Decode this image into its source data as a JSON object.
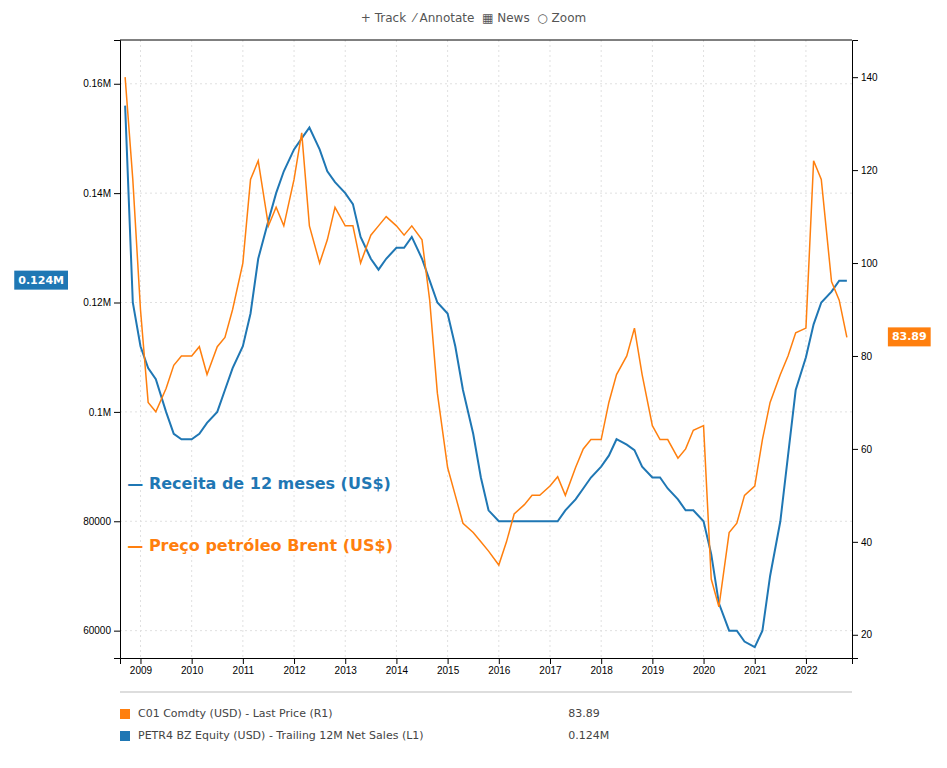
{
  "chart_data": {
    "type": "line",
    "subtitle": "+ Track  ⁄ Annotate  ▦ News  ○ Zoom",
    "x": [
      2008.7,
      2008.85,
      2009.0,
      2009.15,
      2009.3,
      2009.5,
      2009.65,
      2009.8,
      2010.0,
      2010.15,
      2010.3,
      2010.5,
      2010.65,
      2010.8,
      2011.0,
      2011.15,
      2011.3,
      2011.5,
      2011.65,
      2011.8,
      2012.0,
      2012.15,
      2012.3,
      2012.5,
      2012.65,
      2012.8,
      2013.0,
      2013.15,
      2013.3,
      2013.5,
      2013.65,
      2013.8,
      2014.0,
      2014.15,
      2014.3,
      2014.5,
      2014.65,
      2014.8,
      2015.0,
      2015.15,
      2015.3,
      2015.5,
      2015.65,
      2015.8,
      2016.0,
      2016.15,
      2016.3,
      2016.5,
      2016.65,
      2016.8,
      2017.0,
      2017.15,
      2017.3,
      2017.5,
      2017.65,
      2017.8,
      2018.0,
      2018.15,
      2018.3,
      2018.5,
      2018.65,
      2018.8,
      2019.0,
      2019.15,
      2019.3,
      2019.5,
      2019.65,
      2019.8,
      2020.0,
      2020.15,
      2020.3,
      2020.5,
      2020.65,
      2020.8,
      2021.0,
      2021.15,
      2021.3,
      2021.5,
      2021.65,
      2021.8,
      2022.0,
      2022.15,
      2022.3,
      2022.5,
      2022.65,
      2022.8
    ],
    "xlim": [
      2008.6,
      2022.9
    ],
    "xticks": [
      2009,
      2010,
      2011,
      2012,
      2013,
      2014,
      2015,
      2016,
      2017,
      2018,
      2019,
      2020,
      2021,
      2022
    ],
    "ylim": [
      55000,
      168000
    ],
    "yticks": [
      60000,
      80000,
      {
        "value": 100000,
        "label": "0.1M"
      },
      {
        "value": 120000,
        "label": "0.12M"
      },
      {
        "value": 140000,
        "label": "0.14M"
      },
      {
        "value": 160000,
        "label": "0.16M"
      }
    ],
    "y2lim": [
      15,
      148
    ],
    "y2ticks": [
      20,
      40,
      60,
      80,
      100,
      120,
      140
    ],
    "grid": true,
    "series": [
      {
        "name": "— Receita de 12 meses (US$)",
        "description": "PETR4 BZ Equity (USD) - Trailing 12M Net Sales (L1)",
        "last_label": "0.124M",
        "values": [
          156000,
          120000,
          112000,
          108000,
          106000,
          100000,
          96000,
          95000,
          95000,
          96000,
          98000,
          100000,
          104000,
          108000,
          112000,
          118000,
          128000,
          135000,
          140000,
          144000,
          148000,
          150000,
          152000,
          148000,
          144000,
          142000,
          140000,
          138000,
          132000,
          128000,
          126000,
          128000,
          130000,
          130000,
          132000,
          128000,
          124000,
          120000,
          118000,
          112000,
          104000,
          96000,
          88000,
          82000,
          80000,
          80000,
          80000,
          80000,
          80000,
          80000,
          80000,
          80000,
          82000,
          84000,
          86000,
          88000,
          90000,
          92000,
          95000,
          94000,
          93000,
          90000,
          88000,
          88000,
          86000,
          84000,
          82000,
          82000,
          80000,
          74000,
          65000,
          60000,
          60000,
          58000,
          57000,
          60000,
          70000,
          80000,
          92000,
          104000,
          110000,
          116000,
          120000,
          122000,
          124000,
          124000
        ]
      },
      {
        "name": "— Preço petróleo Brent (US$)",
        "axis": "y2",
        "description": "C01 Comdty (USD) - Last Price (R1)",
        "last_label": "83.89",
        "values": [
          140,
          118,
          90,
          70,
          68,
          73,
          78,
          80,
          80,
          82,
          76,
          82,
          84,
          90,
          100,
          118,
          122,
          108,
          112,
          108,
          118,
          128,
          108,
          100,
          105,
          112,
          108,
          108,
          100,
          106,
          108,
          110,
          108,
          106,
          108,
          105,
          92,
          72,
          56,
          50,
          44,
          42,
          40,
          38,
          35,
          40,
          46,
          48,
          50,
          50,
          52,
          54,
          50,
          56,
          60,
          62,
          62,
          70,
          76,
          80,
          86,
          76,
          65,
          62,
          62,
          58,
          60,
          64,
          65,
          32,
          26,
          42,
          44,
          50,
          52,
          62,
          70,
          76,
          80,
          85,
          86,
          122,
          118,
          96,
          92,
          84
        ]
      }
    ],
    "annotations": [
      {
        "text": "83.89",
        "x": 2022.8,
        "y": 84,
        "axis": "y2"
      },
      {
        "text": "0.124M",
        "x": 2008.6,
        "y": 124000
      }
    ]
  }
}
